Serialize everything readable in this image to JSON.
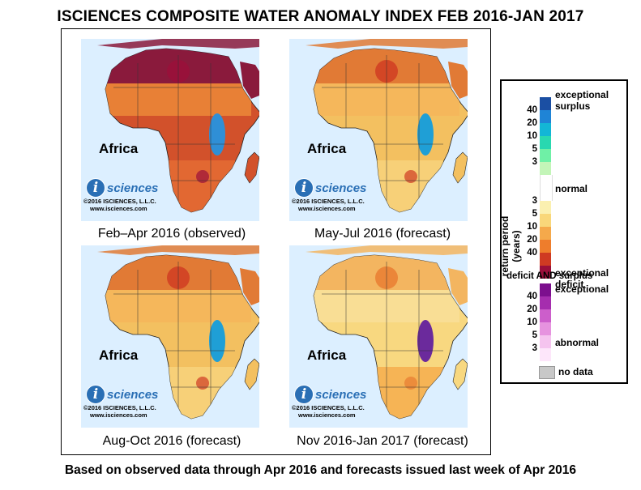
{
  "title": "ISCIENCES COMPOSITE WATER ANOMALY INDEX FEB 2016-JAN 2017",
  "footer": "Based on observed data through Apr 2016 and forecasts issued last week of Apr 2016",
  "panels": [
    {
      "region": "Africa",
      "caption": "Feb–Apr 2016 (observed)",
      "logo": "sciences",
      "logo_letter": "i",
      "copyright": "©2016 ISCIENCES, L.L.C.",
      "website": "www.isciences.com",
      "dominant": "deficit-severe"
    },
    {
      "region": "Africa",
      "caption": "May-Jul 2016 (forecast)",
      "logo": "sciences",
      "logo_letter": "i",
      "copyright": "©2016 ISCIENCES, L.L.C.",
      "website": "www.isciences.com",
      "dominant": "deficit-moderate"
    },
    {
      "region": "Africa",
      "caption": "Aug-Oct 2016 (forecast)",
      "logo": "sciences",
      "logo_letter": "i",
      "copyright": "©2016 ISCIENCES, L.L.C.",
      "website": "www.isciences.com",
      "dominant": "deficit-moderate"
    },
    {
      "region": "Africa",
      "caption": "Nov 2016-Jan 2017 (forecast)",
      "logo": "sciences",
      "logo_letter": "i",
      "copyright": "©2016 ISCIENCES, L.L.C.",
      "website": "www.isciences.com",
      "dominant": "deficit-mild"
    }
  ],
  "legend": {
    "axis_label": "return period (years)",
    "surplus_label": "exceptional\nsurplus",
    "normal_label": "normal",
    "deficit_label": "exceptional\ndeficit",
    "both_title": "deficit AND surplus",
    "both_exceptional": "exceptional",
    "both_abnormal": "abnormal",
    "nodata_label": "no data",
    "surplus_ticks": [
      "40",
      "20",
      "10",
      "5",
      "3"
    ],
    "deficit_ticks": [
      "3",
      "5",
      "10",
      "20",
      "40"
    ],
    "both_ticks": [
      "40",
      "20",
      "10",
      "5",
      "3"
    ],
    "surplus_colors": [
      "#1b4fa3",
      "#1f84d6",
      "#13b6d6",
      "#29d8b0",
      "#6ff0a6",
      "#c3f5b8"
    ],
    "normal_color": "#ffffff",
    "deficit_colors": [
      "#fbf0b0",
      "#f9d77a",
      "#f5a94b",
      "#ee7d2c",
      "#cf3a22",
      "#9b0f3a"
    ],
    "both_colors": [
      "#7c0f8e",
      "#a52dae",
      "#cc5ecb",
      "#e693df",
      "#f5c4ef",
      "#fde6fa"
    ],
    "nodata_color": "#c8c8c8"
  }
}
